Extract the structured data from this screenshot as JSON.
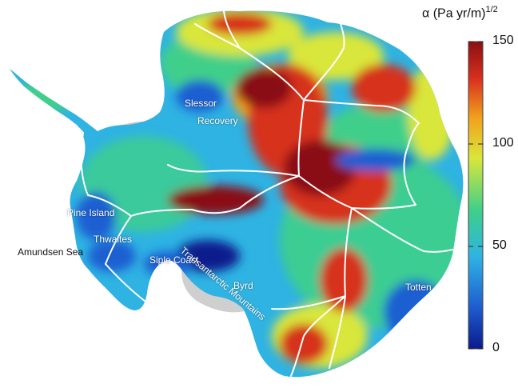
{
  "colorbar": {
    "title": "α (Pa yr/m)",
    "exponent": "1/2",
    "min": 0,
    "max": 150,
    "ticks": [
      "150",
      "100",
      "50",
      "0"
    ],
    "colors": [
      "#0b1a8c",
      "#1f5fd1",
      "#2fb3e3",
      "#3fcf8a",
      "#d9e63a",
      "#f2a21d",
      "#d6301e",
      "#8a0f12"
    ]
  },
  "regions": {
    "slessor": "Slessor",
    "recovery": "Recovery",
    "pine_island": "Pine Island",
    "thwaites": "Thwaites",
    "amundsen_sea": "Amundsen Sea",
    "siple_coast": "Siple Coast",
    "transantarctic": "Transantarctic Mountains",
    "byrd": "Byrd",
    "totten": "Totten"
  }
}
